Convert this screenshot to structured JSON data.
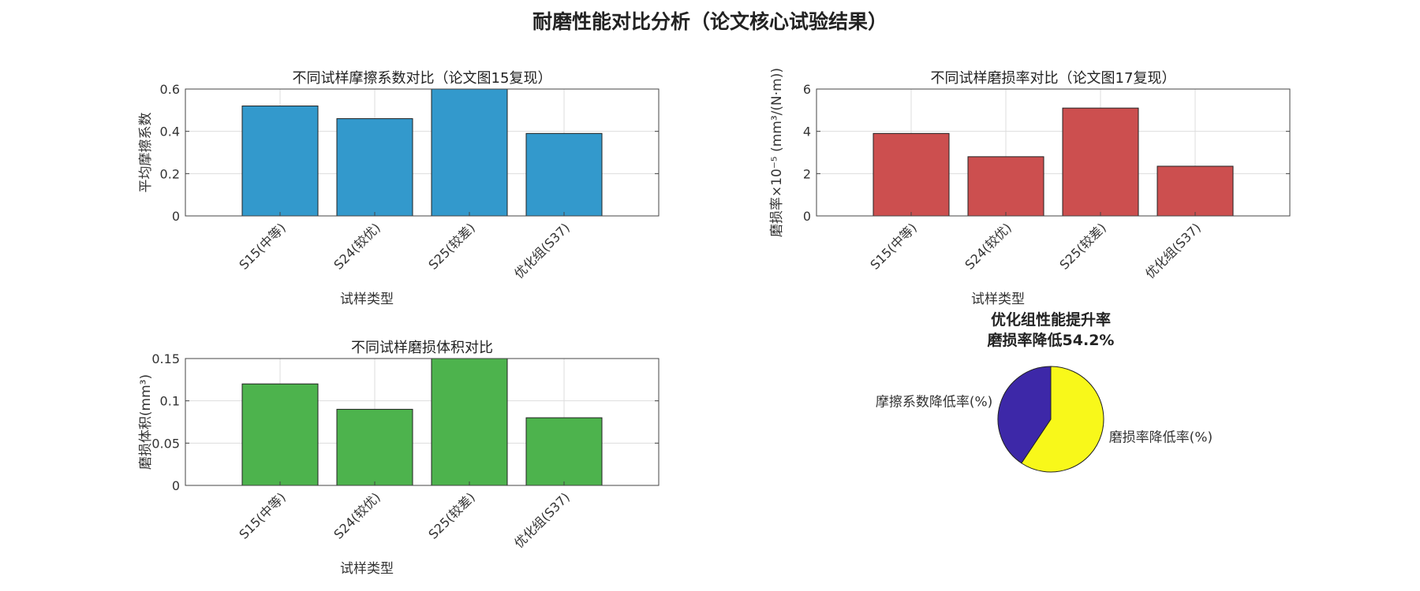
{
  "figure": {
    "title": "耐磨性能对比分析（论文核心试验结果）"
  },
  "chart_data": [
    {
      "type": "bar",
      "title": "不同试样摩擦系数对比（论文图15复现）",
      "categories": [
        "S15(中等)",
        "S24(较优)",
        "S25(较差)",
        "优化组(S37)"
      ],
      "values": [
        0.52,
        0.46,
        0.61,
        0.39
      ],
      "xlabel": "试样类型",
      "ylabel": "平均摩擦系数",
      "ylim": [
        0,
        0.6
      ],
      "yticks": [
        "0",
        "0.2",
        "0.4",
        "0.6"
      ],
      "color": "#3399cc",
      "grid": true
    },
    {
      "type": "bar",
      "title": "不同试样磨损率对比（论文图17复现）",
      "categories": [
        "S15(中等)",
        "S24(较优)",
        "S25(较差)",
        "优化组(S37)"
      ],
      "values": [
        3.9,
        2.8,
        5.1,
        2.35
      ],
      "xlabel": "试样类型",
      "ylabel": "磨损率×10⁻⁵ (mm³/(N·m))",
      "ylim": [
        0,
        6
      ],
      "yticks": [
        "0",
        "2",
        "4",
        "6"
      ],
      "color": "#cc4f4f",
      "grid": true
    },
    {
      "type": "bar",
      "title": "不同试样磨损体积对比",
      "categories": [
        "S15(中等)",
        "S24(较优)",
        "S25(较差)",
        "优化组(S37)"
      ],
      "values": [
        0.12,
        0.09,
        0.151,
        0.08
      ],
      "xlabel": "试样类型",
      "ylabel": "磨损体积(mm³)",
      "ylim": [
        0,
        0.15
      ],
      "yticks": [
        "0",
        "0.05",
        "0.1",
        "0.15"
      ],
      "color": "#4db34d",
      "grid": true
    },
    {
      "type": "pie",
      "title": "优化组性能提升率",
      "subtitle": "磨损率降低54.2%",
      "labels": [
        "磨损率降低率(%)",
        "摩擦系数降低率(%)"
      ],
      "values": [
        54.2,
        37.1
      ],
      "colors": [
        "#f8f81a",
        "#3d28a8"
      ]
    }
  ]
}
